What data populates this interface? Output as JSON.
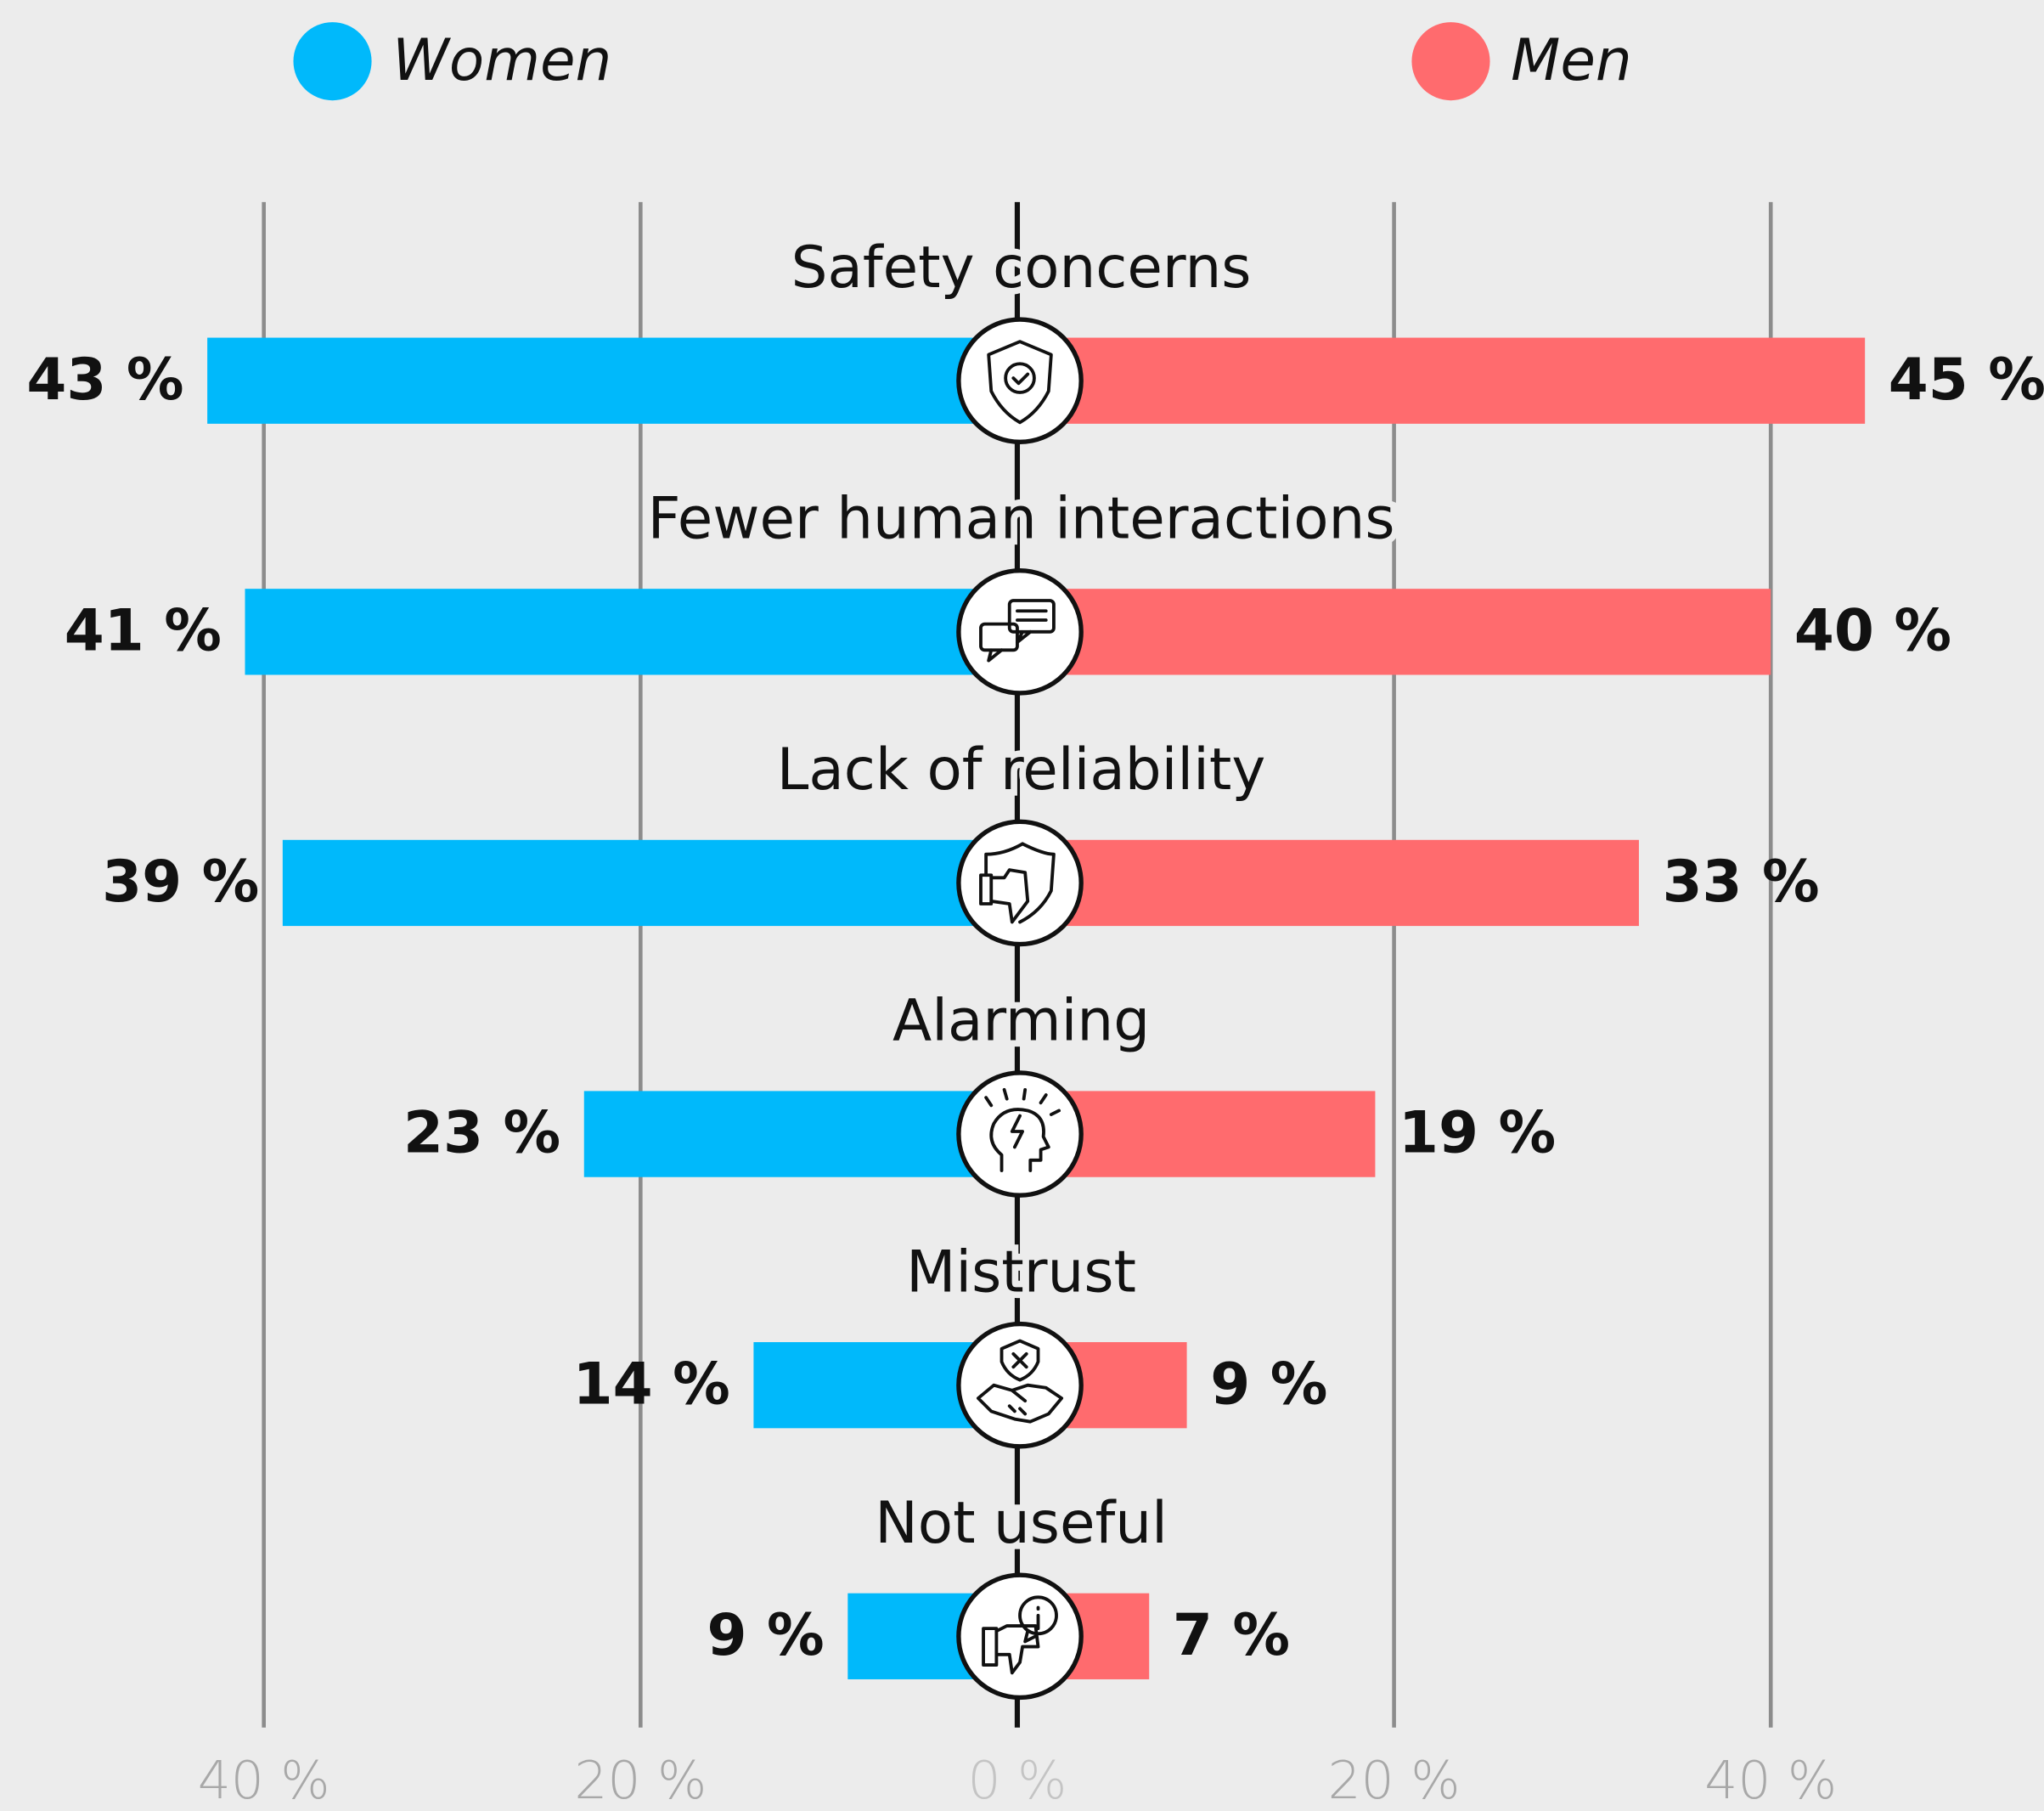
{
  "chart_data": {
    "type": "butterfly_bar",
    "categories": [
      "Safety concerns",
      "Fewer human interactions",
      "Lack of reliability",
      "Alarming",
      "Mistrust",
      "Not useful"
    ],
    "series": [
      {
        "name": "Women",
        "color": "#00b9fb",
        "direction": "left",
        "values": [
          43,
          41,
          39,
          23,
          14,
          9
        ],
        "value_labels": [
          "43 %",
          "41 %",
          "39 %",
          "23 %",
          "14 %",
          "9 %"
        ]
      },
      {
        "name": "Men",
        "color": "#ff6b6e",
        "direction": "right",
        "values": [
          45,
          40,
          33,
          19,
          9,
          7
        ],
        "value_labels": [
          "45 %",
          "40 %",
          "33 %",
          "19 %",
          "9 %",
          "7 %"
        ]
      }
    ],
    "xlim": [
      -54,
      54.5
    ],
    "xticks": [
      {
        "value": -40,
        "label": "40 %"
      },
      {
        "value": -20,
        "label": "20 %"
      },
      {
        "value": 0,
        "label": "0 %"
      },
      {
        "value": 20,
        "label": "20 %"
      },
      {
        "value": 40,
        "label": "40 %"
      }
    ],
    "grid": true,
    "legend": "top"
  }
}
